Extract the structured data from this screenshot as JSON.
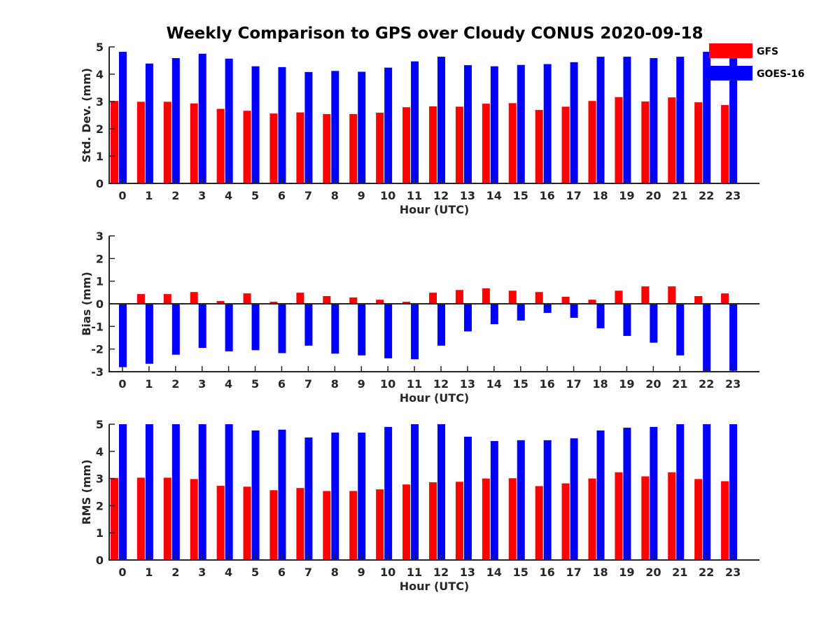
{
  "title": "Weekly Comparison to GPS over Cloudy CONUS 2020-09-18",
  "legend": {
    "placement": "top-right"
  },
  "colors": {
    "GFS": "#ff0000",
    "GOES-16": "#0000ff"
  },
  "chart_data": [
    {
      "type": "bar",
      "title": "Weekly Comparison to GPS over Cloudy CONUS 2020-09-18",
      "xlabel": "Hour (UTC)",
      "ylabel": "Std. Dev. (mm)",
      "ylim": [
        0,
        5
      ],
      "yticks": [
        "0",
        "1",
        "2",
        "3",
        "4",
        "5"
      ],
      "categories": [
        "0",
        "1",
        "2",
        "3",
        "4",
        "5",
        "6",
        "7",
        "8",
        "9",
        "10",
        "11",
        "12",
        "13",
        "14",
        "15",
        "16",
        "17",
        "18",
        "19",
        "20",
        "21",
        "22",
        "23"
      ],
      "grid": false,
      "series": [
        {
          "name": "GFS",
          "values": [
            3.02,
            2.99,
            2.99,
            2.93,
            2.73,
            2.66,
            2.56,
            2.6,
            2.54,
            2.54,
            2.59,
            2.79,
            2.82,
            2.81,
            2.92,
            2.94,
            2.69,
            2.81,
            3.02,
            3.16,
            3.0,
            3.15,
            2.97,
            2.87
          ]
        },
        {
          "name": "GOES-16",
          "values": [
            4.82,
            4.39,
            4.59,
            4.75,
            4.57,
            4.29,
            4.26,
            4.08,
            4.12,
            4.09,
            4.24,
            4.47,
            4.64,
            4.33,
            4.29,
            4.34,
            4.37,
            4.44,
            4.64,
            4.64,
            4.59,
            4.64,
            4.82,
            4.64
          ]
        }
      ]
    },
    {
      "type": "bar",
      "xlabel": "Hour (UTC)",
      "ylabel": "Bias (mm)",
      "ylim": [
        -3,
        3
      ],
      "yticks": [
        "-3",
        "-2",
        "-1",
        "0",
        "1",
        "2",
        "3"
      ],
      "categories": [
        "0",
        "1",
        "2",
        "3",
        "4",
        "5",
        "6",
        "7",
        "8",
        "9",
        "10",
        "11",
        "12",
        "13",
        "14",
        "15",
        "16",
        "17",
        "18",
        "19",
        "20",
        "21",
        "22",
        "23"
      ],
      "grid": false,
      "series": [
        {
          "name": "GFS",
          "values": [
            0,
            0.43,
            0.43,
            0.52,
            0.12,
            0.46,
            0.09,
            0.49,
            0.34,
            0.28,
            0.18,
            0.09,
            0.49,
            0.61,
            0.68,
            0.58,
            0.52,
            0.31,
            0.18,
            0.58,
            0.77,
            0.77,
            0.34,
            0.46
          ]
        },
        {
          "name": "GOES-16",
          "values": [
            -2.8,
            -2.65,
            -2.25,
            -1.95,
            -2.1,
            -2.05,
            -2.18,
            -1.85,
            -2.2,
            -2.28,
            -2.41,
            -2.45,
            -1.85,
            -1.22,
            -0.9,
            -0.74,
            -0.4,
            -0.62,
            -1.08,
            -1.42,
            -1.72,
            -2.28,
            -3.0,
            -2.96
          ]
        }
      ]
    },
    {
      "type": "bar",
      "xlabel": "Hour (UTC)",
      "ylabel": "RMS (mm)",
      "ylim": [
        0,
        5
      ],
      "yticks": [
        "0",
        "1",
        "2",
        "3",
        "4",
        "5"
      ],
      "categories": [
        "0",
        "1",
        "2",
        "3",
        "4",
        "5",
        "6",
        "7",
        "8",
        "9",
        "10",
        "11",
        "12",
        "13",
        "14",
        "15",
        "16",
        "17",
        "18",
        "19",
        "20",
        "21",
        "22",
        "23"
      ],
      "grid": false,
      "series": [
        {
          "name": "GFS",
          "values": [
            3.02,
            3.03,
            3.03,
            2.98,
            2.73,
            2.7,
            2.57,
            2.65,
            2.54,
            2.54,
            2.6,
            2.78,
            2.86,
            2.88,
            3.0,
            3.01,
            2.72,
            2.82,
            3.0,
            3.23,
            3.08,
            3.23,
            2.98,
            2.9
          ]
        },
        {
          "name": "GOES-16",
          "values": [
            5.0,
            5.0,
            5.0,
            5.0,
            5.0,
            4.77,
            4.8,
            4.51,
            4.69,
            4.69,
            4.9,
            5.0,
            5.0,
            4.54,
            4.38,
            4.41,
            4.41,
            4.48,
            4.77,
            4.87,
            4.9,
            5.0,
            5.0,
            5.0
          ]
        }
      ]
    }
  ]
}
